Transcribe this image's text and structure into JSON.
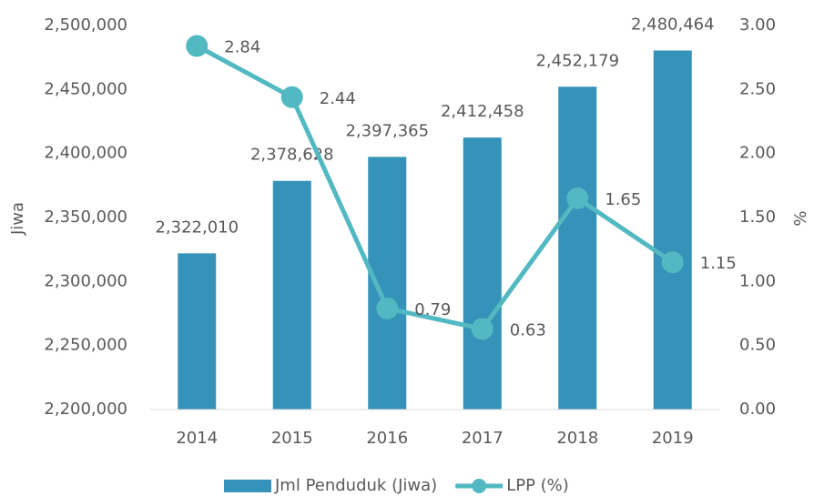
{
  "chart_data": {
    "type": "combo",
    "categories": [
      "2014",
      "2015",
      "2016",
      "2017",
      "2018",
      "2019"
    ],
    "ylabel": "Jiwa",
    "y2label": "%",
    "ylim": [
      2200000,
      2500000
    ],
    "yticks": [
      {
        "value": 2200000,
        "label": "2,200,000"
      },
      {
        "value": 2250000,
        "label": "2,250,000"
      },
      {
        "value": 2300000,
        "label": "2,300,000"
      },
      {
        "value": 2350000,
        "label": "2,350,000"
      },
      {
        "value": 2400000,
        "label": "2,400,000"
      },
      {
        "value": 2450000,
        "label": "2,450,000"
      },
      {
        "value": 2500000,
        "label": "2,500,000"
      }
    ],
    "y2lim": [
      0,
      3
    ],
    "y2ticks": [
      {
        "value": 0,
        "label": "0.00"
      },
      {
        "value": 0.5,
        "label": "0.50"
      },
      {
        "value": 1,
        "label": "1.00"
      },
      {
        "value": 1.5,
        "label": "1.50"
      },
      {
        "value": 2,
        "label": "2.00"
      },
      {
        "value": 2.5,
        "label": "2.50"
      },
      {
        "value": 3,
        "label": "3.00"
      }
    ],
    "legend": "bottom",
    "series": [
      {
        "name": "Jml Penduduk (Jiwa)",
        "type": "bar",
        "color": "#3592b8",
        "values": [
          2322010,
          2378628,
          2397365,
          2412458,
          2452179,
          2480464
        ],
        "value_labels": [
          "2,322,010",
          "2,378,628",
          "2,397,365",
          "2,412,458",
          "2,452,179",
          "2,480,464"
        ]
      },
      {
        "name": "LPP (%)",
        "type": "line",
        "axis": "y2",
        "color": "#52b8c2",
        "values": [
          2.84,
          2.44,
          0.79,
          0.63,
          1.65,
          1.15
        ]
      }
    ]
  }
}
